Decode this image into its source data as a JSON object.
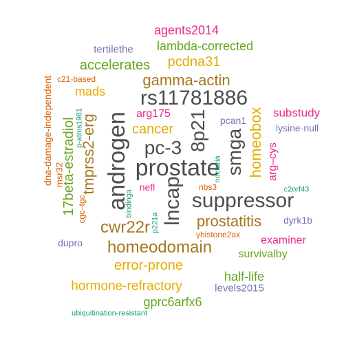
{
  "colors": {
    "dark_gray": "#4d4d4d",
    "brown": "#a6761d",
    "gold": "#e6ab02",
    "green": "#66a61e",
    "magenta": "#e7298a",
    "purple": "#7570b3",
    "orange": "#d95f02",
    "teal": "#1b9e77"
  },
  "words": [
    {
      "id": "rs11781886",
      "text": "rs11781886",
      "color": "dark_gray"
    },
    {
      "id": "prostate",
      "text": "prostate",
      "color": "dark_gray"
    },
    {
      "id": "pc-3",
      "text": "pc-3",
      "color": "dark_gray"
    },
    {
      "id": "androgen",
      "text": "androgen",
      "color": "dark_gray"
    },
    {
      "id": "lncap",
      "text": "lncap",
      "color": "dark_gray"
    },
    {
      "id": "8p21",
      "text": "8p21",
      "color": "dark_gray"
    },
    {
      "id": "suppressor",
      "text": "suppressor",
      "color": "dark_gray"
    },
    {
      "id": "smga",
      "text": "smga",
      "color": "dark_gray"
    },
    {
      "id": "gamma-actin",
      "text": "gamma-actin",
      "color": "brown"
    },
    {
      "id": "cwr22r",
      "text": "cwr22r",
      "color": "brown"
    },
    {
      "id": "homeodomain",
      "text": "homeodomain",
      "color": "brown"
    },
    {
      "id": "prostatitis",
      "text": "prostatitis",
      "color": "brown"
    },
    {
      "id": "tmprss2-erg",
      "text": "tmprss2-erg",
      "color": "brown"
    },
    {
      "id": "homeobox",
      "text": "homeobox",
      "color": "gold"
    },
    {
      "id": "pcdna31",
      "text": "pcdna31",
      "color": "gold"
    },
    {
      "id": "cancer",
      "text": "cancer",
      "color": "gold"
    },
    {
      "id": "mads",
      "text": "mads",
      "color": "gold"
    },
    {
      "id": "error-prone",
      "text": "error-prone",
      "color": "gold"
    },
    {
      "id": "hormone-refractory",
      "text": "hormone-refractory",
      "color": "gold"
    },
    {
      "id": "lambda-corrected",
      "text": "lambda-corrected",
      "color": "green"
    },
    {
      "id": "accelerates",
      "text": "accelerates",
      "color": "green"
    },
    {
      "id": "17beta-estradiol",
      "text": "17beta-estradiol",
      "color": "green"
    },
    {
      "id": "survivalby",
      "text": "survivalby",
      "color": "green"
    },
    {
      "id": "half-life",
      "text": "half-life",
      "color": "green"
    },
    {
      "id": "gprc6arfx6",
      "text": "gprc6arfx6",
      "color": "green"
    },
    {
      "id": "agents2014",
      "text": "agents2014",
      "color": "magenta"
    },
    {
      "id": "arg175",
      "text": "arg175",
      "color": "magenta"
    },
    {
      "id": "substudy",
      "text": "substudy",
      "color": "magenta"
    },
    {
      "id": "arg-cys",
      "text": "arg–cys",
      "color": "magenta"
    },
    {
      "id": "nefl",
      "text": "nefl",
      "color": "magenta"
    },
    {
      "id": "examiner",
      "text": "examiner",
      "color": "magenta"
    },
    {
      "id": "tertilethe",
      "text": "tertilethe",
      "color": "purple"
    },
    {
      "id": "pcan1",
      "text": "pcan1",
      "color": "purple"
    },
    {
      "id": "lysine-null",
      "text": "lysine-null",
      "color": "purple"
    },
    {
      "id": "dyrk1b",
      "text": "dyrk1b",
      "color": "purple"
    },
    {
      "id": "dupro",
      "text": "dupro",
      "color": "purple"
    },
    {
      "id": "levels2015",
      "text": "levels2015",
      "color": "purple"
    },
    {
      "id": "dna-damage-independent",
      "text": "dna-damage-independent",
      "color": "orange"
    },
    {
      "id": "c21-based",
      "text": "c21-based",
      "color": "orange"
    },
    {
      "id": "msr32",
      "text": "msr32",
      "color": "orange"
    },
    {
      "id": "cgc-tgc",
      "text": "cgc–tgc",
      "color": "orange"
    },
    {
      "id": "nbs3",
      "text": "nbs3",
      "color": "orange"
    },
    {
      "id": "yhistone2ax",
      "text": "γhistone2ax",
      "color": "orange"
    },
    {
      "id": "p-atms1981",
      "text": "p-atms1981",
      "color": "teal"
    },
    {
      "id": "nocturia",
      "text": "nocturia",
      "color": "teal"
    },
    {
      "id": "bindinga",
      "text": "bindinga",
      "color": "teal"
    },
    {
      "id": "p221a",
      "text": "p221a",
      "color": "teal"
    },
    {
      "id": "c2orf43",
      "text": "c2orf43",
      "color": "teal"
    },
    {
      "id": "ubiquitination-resistant",
      "text": "ubiquitination-resistant",
      "color": "teal"
    }
  ]
}
